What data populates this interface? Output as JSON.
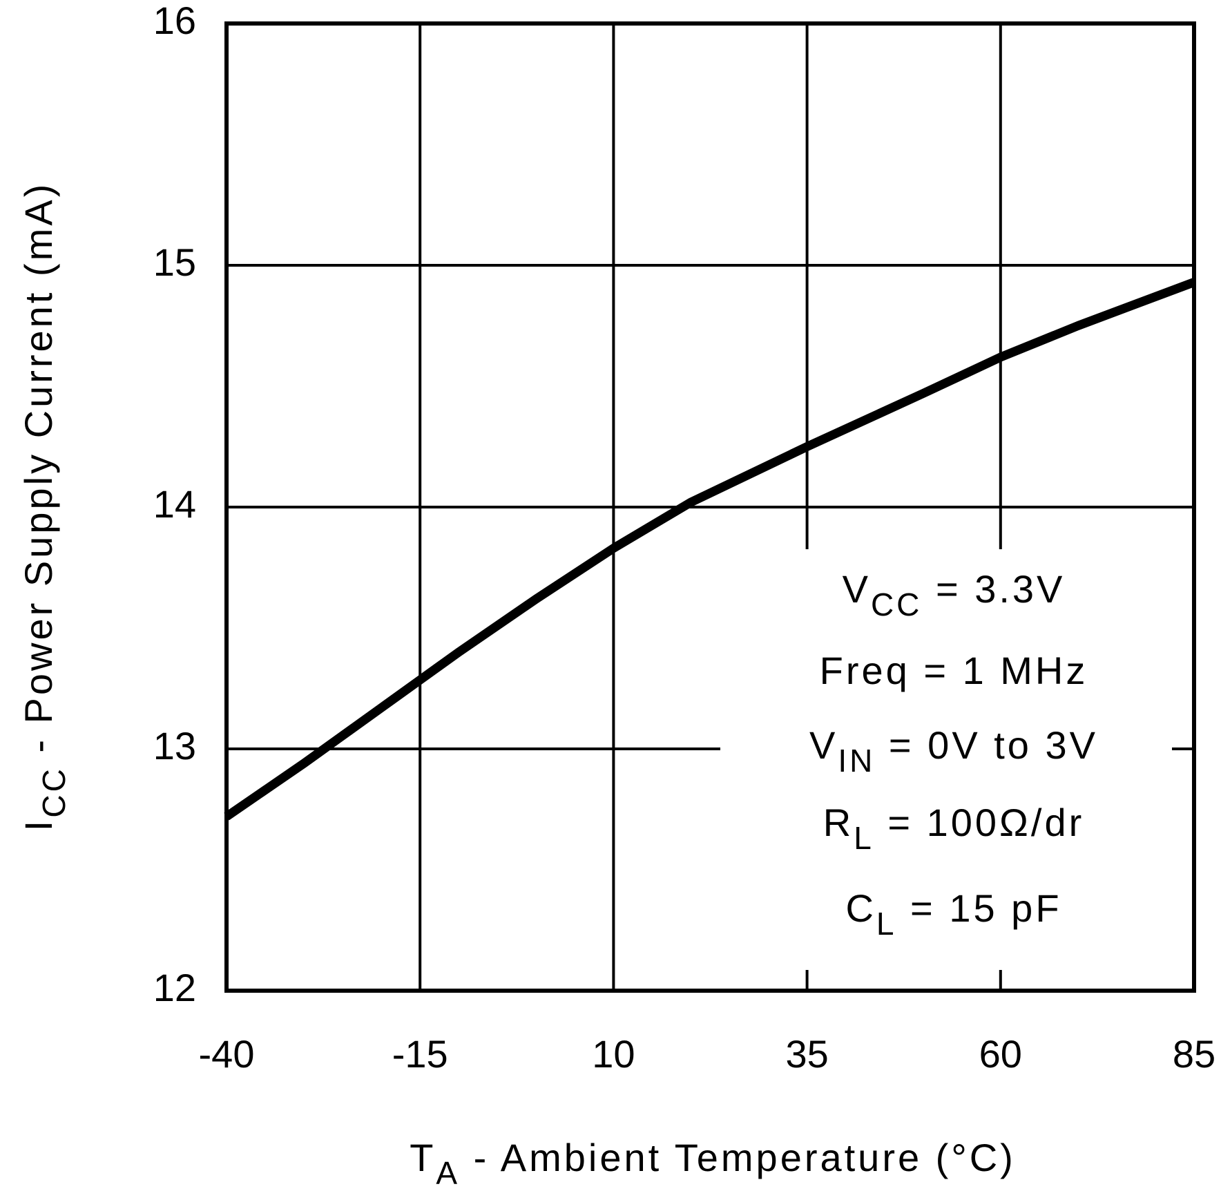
{
  "chart_data": {
    "type": "line",
    "x_label": {
      "main": "T",
      "sub": "A",
      "rest": " - Ambient Temperature (°C)"
    },
    "y_label": {
      "main": "I",
      "sub": "CC",
      "rest": " - Power Supply Current (mA)"
    },
    "x": [
      -40,
      -30,
      -20,
      -10,
      0,
      10,
      20,
      35,
      50,
      60,
      70,
      85
    ],
    "series": [
      {
        "color": "#000000",
        "values": [
          12.72,
          12.94,
          13.17,
          13.4,
          13.62,
          13.83,
          14.02,
          14.25,
          14.47,
          14.62,
          14.75,
          14.93
        ]
      }
    ],
    "xlim": [
      -40,
      85
    ],
    "xticks": [
      -40,
      -15,
      10,
      35,
      60,
      85
    ],
    "ylim": [
      12,
      16
    ],
    "yticks": [
      12,
      13,
      14,
      15,
      16
    ],
    "grid": true,
    "annotations": [
      {
        "main": "V",
        "sub": "CC",
        "rest": " = 3.3V"
      },
      {
        "main": "Freq = 1 MHz"
      },
      {
        "main": "V",
        "sub": "IN",
        "rest": " = 0V to 3V"
      },
      {
        "main": "R",
        "sub": "L",
        "rest": " = 100Ω/dr"
      },
      {
        "main": "C",
        "sub": "L",
        "rest": " = 15 pF"
      }
    ]
  }
}
